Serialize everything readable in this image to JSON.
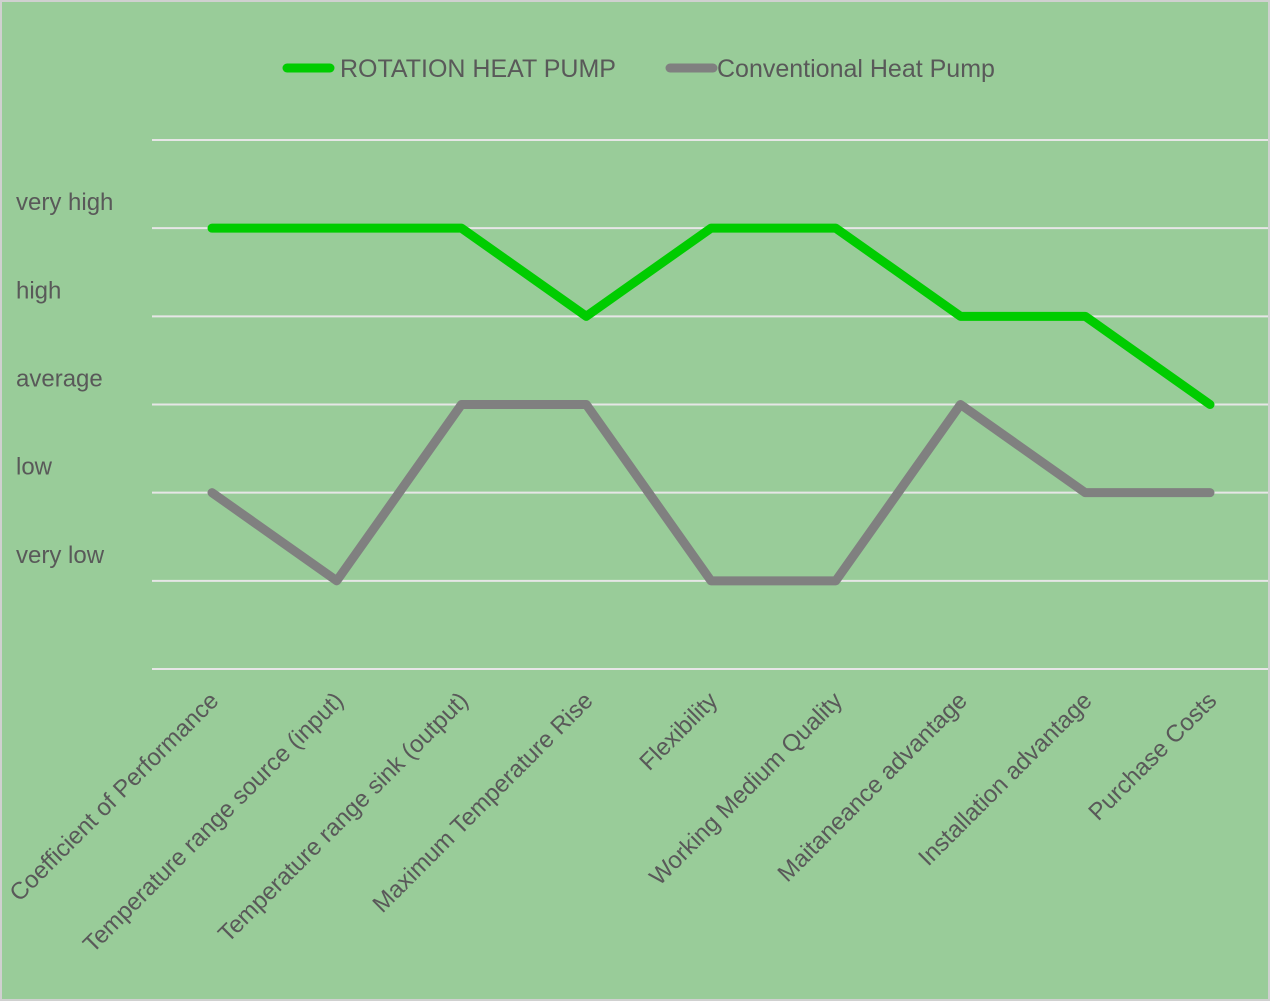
{
  "chart_data": {
    "type": "line",
    "title": "",
    "xlabel": "",
    "ylabel": "",
    "categories": [
      "Coefficient of Performance",
      "Temperature range source (input)",
      "Temperature range sink (output)",
      "Maximum Temperature Rise",
      "Flexibility",
      "Working Medium Quality",
      "Maitaneance advantage",
      "Installation advantage",
      "Purchase Costs"
    ],
    "y_tick_labels": [
      "very low",
      "low",
      "average",
      "high",
      "very high"
    ],
    "y_tick_values": [
      1,
      2,
      3,
      4,
      5
    ],
    "ylim": [
      0,
      6
    ],
    "grid": true,
    "legend_position": "top",
    "background_color": "#99cc99",
    "grid_color": "#e6e6e6",
    "series": [
      {
        "name": "ROTATION HEAT PUMP",
        "color": "#00cc00",
        "values": [
          5,
          5,
          5,
          4,
          5,
          5,
          4,
          4,
          3
        ]
      },
      {
        "name": "Conventional Heat Pump",
        "color": "#808080",
        "values": [
          2,
          1,
          3,
          3,
          1,
          1,
          3,
          2,
          2
        ]
      }
    ]
  }
}
